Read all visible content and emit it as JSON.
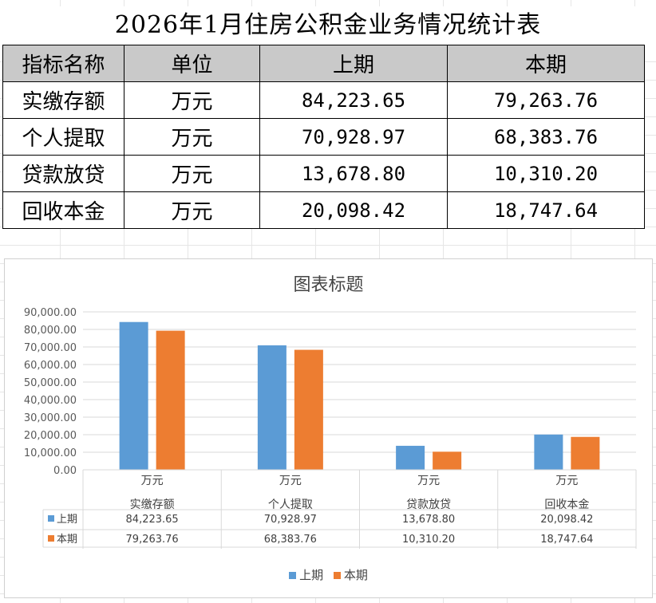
{
  "page": {
    "title": "2026年1月住房公积金业务情况统计表"
  },
  "table": {
    "headers": [
      "指标名称",
      "单位",
      "上期",
      "本期"
    ],
    "rows": [
      {
        "name": "实缴存额",
        "unit": "万元",
        "prev": "84,223.65",
        "curr": "79,263.76"
      },
      {
        "name": "个人提取",
        "unit": "万元",
        "prev": "70,928.97",
        "curr": "68,383.76"
      },
      {
        "name": "贷款放贷",
        "unit": "万元",
        "prev": "13,678.80",
        "curr": "10,310.20"
      },
      {
        "name": "回收本金",
        "unit": "万元",
        "prev": "20,098.42",
        "curr": "18,747.64"
      }
    ]
  },
  "chart_data": {
    "type": "bar",
    "title": "图表标题",
    "categories": [
      "实缴存额",
      "个人提取",
      "贷款放贷",
      "回收本金"
    ],
    "category_units": [
      "万元",
      "万元",
      "万元",
      "万元"
    ],
    "series": [
      {
        "name": "上期",
        "color": "#5b9bd5",
        "values": [
          84223.65,
          70928.97,
          13678.8,
          20098.42
        ],
        "labels": [
          "84,223.65",
          "70,928.97",
          "13,678.80",
          "20,098.42"
        ]
      },
      {
        "name": "本期",
        "color": "#ed7d31",
        "values": [
          79263.76,
          68383.76,
          10310.2,
          18747.64
        ],
        "labels": [
          "79,263.76",
          "68,383.76",
          "10,310.20",
          "18,747.64"
        ]
      }
    ],
    "ylim": [
      0,
      90000
    ],
    "ytick_labels": [
      "0.00",
      "10,000.00",
      "20,000.00",
      "30,000.00",
      "40,000.00",
      "50,000.00",
      "60,000.00",
      "70,000.00",
      "80,000.00",
      "90,000.00"
    ],
    "grid": true,
    "legend": "bottom",
    "data_table": true
  }
}
